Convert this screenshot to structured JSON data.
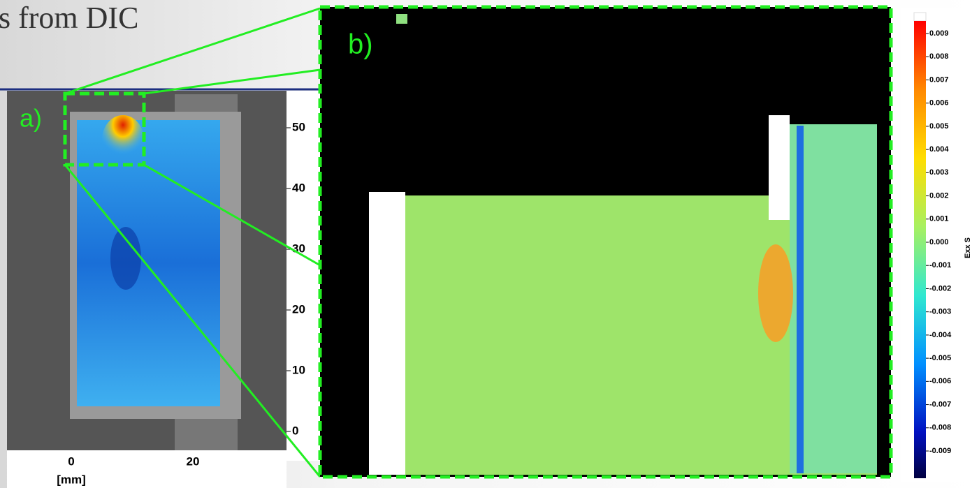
{
  "title": "s from DIC",
  "panel_a": {
    "label": "a)",
    "y_ticks": [
      "50",
      "40",
      "30",
      "20",
      "10",
      "0"
    ],
    "x_ticks": [
      "0",
      "20"
    ],
    "x_unit": "[mm]"
  },
  "panel_b": {
    "label": "b)"
  },
  "colorbar": {
    "title": "Exx S",
    "ticks": [
      "0.009",
      "0.008",
      "0.007",
      "0.006",
      "0.005",
      "0.004",
      "0.003",
      "0.002",
      "0.001",
      "0.000",
      "-0.001",
      "-0.002",
      "-0.003",
      "-0.004",
      "-0.005",
      "-0.006",
      "-0.007",
      "-0.008",
      "-0.009"
    ]
  }
}
